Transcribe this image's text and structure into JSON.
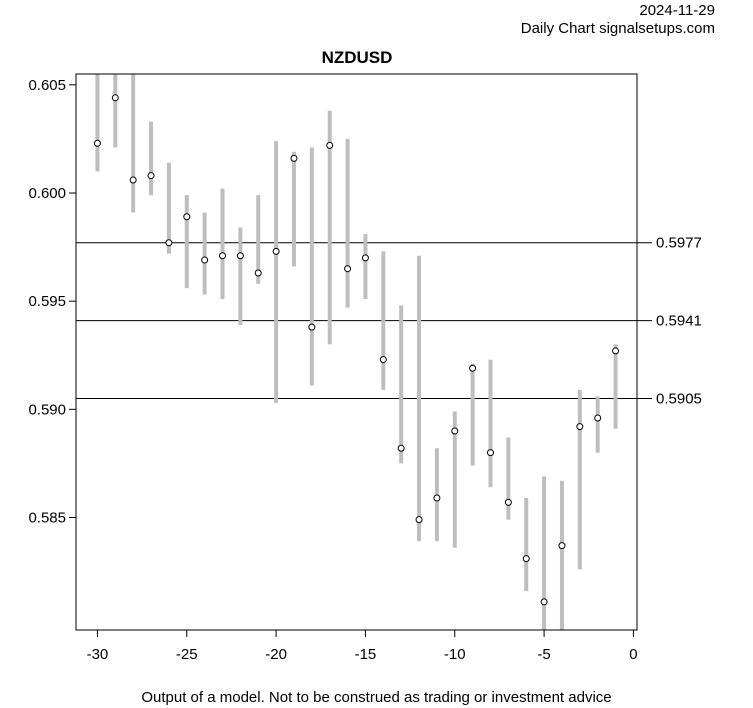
{
  "header": {
    "date": "2024-11-29",
    "source": "Daily Chart signalsetups.com"
  },
  "footer": "Output of a model. Not to be construed as trading or investment advice",
  "chart_data": {
    "type": "errorbar",
    "title": "NZDUSD",
    "xlabel": "",
    "ylabel": "",
    "xlim": [
      -31.2,
      0.2
    ],
    "ylim": [
      0.5798,
      0.6055
    ],
    "x_ticks": [
      -30,
      -25,
      -20,
      -15,
      -10,
      -5,
      0
    ],
    "x_tick_labels": [
      "-30",
      "-25",
      "-20",
      "-15",
      "-10",
      "-5",
      "0"
    ],
    "y_ticks": [
      0.585,
      0.59,
      0.595,
      0.6,
      0.605
    ],
    "y_tick_labels": [
      "0.585",
      "0.590",
      "0.595",
      "0.600",
      "0.605"
    ],
    "grid": false,
    "bar_color": "#bebebe",
    "points": [
      {
        "x": -30,
        "y": 0.6023,
        "low": 0.601,
        "high": 0.6055
      },
      {
        "x": -29,
        "y": 0.6044,
        "low": 0.6021,
        "high": 0.6055
      },
      {
        "x": -28,
        "y": 0.6006,
        "low": 0.5991,
        "high": 0.6055
      },
      {
        "x": -27,
        "y": 0.6008,
        "low": 0.5999,
        "high": 0.6033
      },
      {
        "x": -26,
        "y": 0.5977,
        "low": 0.5972,
        "high": 0.6014
      },
      {
        "x": -25,
        "y": 0.5989,
        "low": 0.5956,
        "high": 0.5999
      },
      {
        "x": -24,
        "y": 0.5969,
        "low": 0.5953,
        "high": 0.5991
      },
      {
        "x": -23,
        "y": 0.5971,
        "low": 0.5951,
        "high": 0.6002
      },
      {
        "x": -22,
        "y": 0.5971,
        "low": 0.5939,
        "high": 0.5984
      },
      {
        "x": -21,
        "y": 0.5963,
        "low": 0.5958,
        "high": 0.5999
      },
      {
        "x": -20,
        "y": 0.5973,
        "low": 0.5903,
        "high": 0.6024
      },
      {
        "x": -19,
        "y": 0.6016,
        "low": 0.5966,
        "high": 0.6019
      },
      {
        "x": -18,
        "y": 0.5938,
        "low": 0.5911,
        "high": 0.6021
      },
      {
        "x": -17,
        "y": 0.6022,
        "low": 0.593,
        "high": 0.6038
      },
      {
        "x": -16,
        "y": 0.5965,
        "low": 0.5947,
        "high": 0.6025
      },
      {
        "x": -15,
        "y": 0.597,
        "low": 0.5951,
        "high": 0.5981
      },
      {
        "x": -14,
        "y": 0.5923,
        "low": 0.5909,
        "high": 0.5973
      },
      {
        "x": -13,
        "y": 0.5882,
        "low": 0.5875,
        "high": 0.5948
      },
      {
        "x": -12,
        "y": 0.5849,
        "low": 0.5839,
        "high": 0.5971
      },
      {
        "x": -11,
        "y": 0.5859,
        "low": 0.5839,
        "high": 0.5882
      },
      {
        "x": -10,
        "y": 0.589,
        "low": 0.5836,
        "high": 0.5899
      },
      {
        "x": -9,
        "y": 0.5919,
        "low": 0.5874,
        "high": 0.5921
      },
      {
        "x": -8,
        "y": 0.588,
        "low": 0.5864,
        "high": 0.5923
      },
      {
        "x": -7,
        "y": 0.5857,
        "low": 0.5849,
        "high": 0.5887
      },
      {
        "x": -6,
        "y": 0.5831,
        "low": 0.5816,
        "high": 0.5859
      },
      {
        "x": -5,
        "y": 0.5811,
        "low": 0.5798,
        "high": 0.5869
      },
      {
        "x": -4,
        "y": 0.5837,
        "low": 0.5798,
        "high": 0.5867
      },
      {
        "x": -3,
        "y": 0.5892,
        "low": 0.5826,
        "high": 0.5909
      },
      {
        "x": -2,
        "y": 0.5896,
        "low": 0.588,
        "high": 0.5906
      },
      {
        "x": -1,
        "y": 0.5927,
        "low": 0.5891,
        "high": 0.593
      }
    ],
    "hlines": [
      {
        "value": 0.5977,
        "label": "0.5977"
      },
      {
        "value": 0.5941,
        "label": "0.5941"
      },
      {
        "value": 0.5905,
        "label": "0.5905"
      }
    ]
  }
}
